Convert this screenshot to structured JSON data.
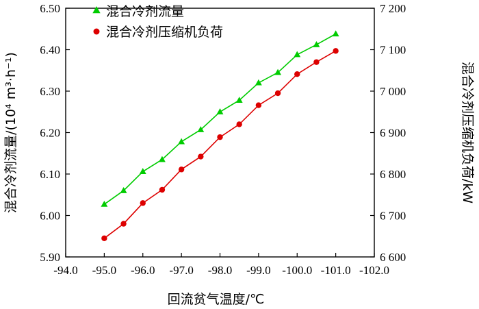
{
  "chart_data": {
    "type": "line",
    "x": [
      -95.0,
      -95.5,
      -96.0,
      -96.5,
      -97.0,
      -97.5,
      -98.0,
      -98.5,
      -99.0,
      -99.5,
      -100.0,
      -100.5,
      -101.0
    ],
    "xlabel": "回流贫气温度/℃",
    "xlim": [
      -94.0,
      -102.0
    ],
    "x_ticks": [
      "-94.0",
      "-95.0",
      "-96.0",
      "-97.0",
      "-98.0",
      "-99.0",
      "-100.0",
      "-101.0",
      "-102.0"
    ],
    "y_left": {
      "label": "混合冷剂流量/(10⁴ m³·h⁻¹)",
      "ylim": [
        5.9,
        6.5
      ],
      "ticks": [
        "5.90",
        "6.00",
        "6.10",
        "6.20",
        "6.30",
        "6.40",
        "6.50"
      ]
    },
    "y_right": {
      "label": "混合冷剂压缩机负荷/kW",
      "ylim": [
        6600,
        7200
      ],
      "ticks": [
        "6 600",
        "6 700",
        "6 800",
        "6 900",
        "7 000",
        "7 100",
        "7 200"
      ]
    },
    "series": [
      {
        "name": "混合冷剂流量",
        "axis": "left",
        "color": "#00cc00",
        "marker": "triangle",
        "values": [
          6.027,
          6.06,
          6.106,
          6.135,
          6.178,
          6.207,
          6.25,
          6.278,
          6.32,
          6.345,
          6.388,
          6.412,
          6.438
        ]
      },
      {
        "name": "混合冷剂压缩机负荷",
        "axis": "right",
        "color": "#dd0000",
        "marker": "circle",
        "values": [
          6645,
          6680,
          6730,
          6762,
          6811,
          6842,
          6889,
          6920,
          6966,
          6995,
          7041,
          7070,
          7097
        ]
      }
    ],
    "legend_position": "top-left",
    "grid": false
  }
}
